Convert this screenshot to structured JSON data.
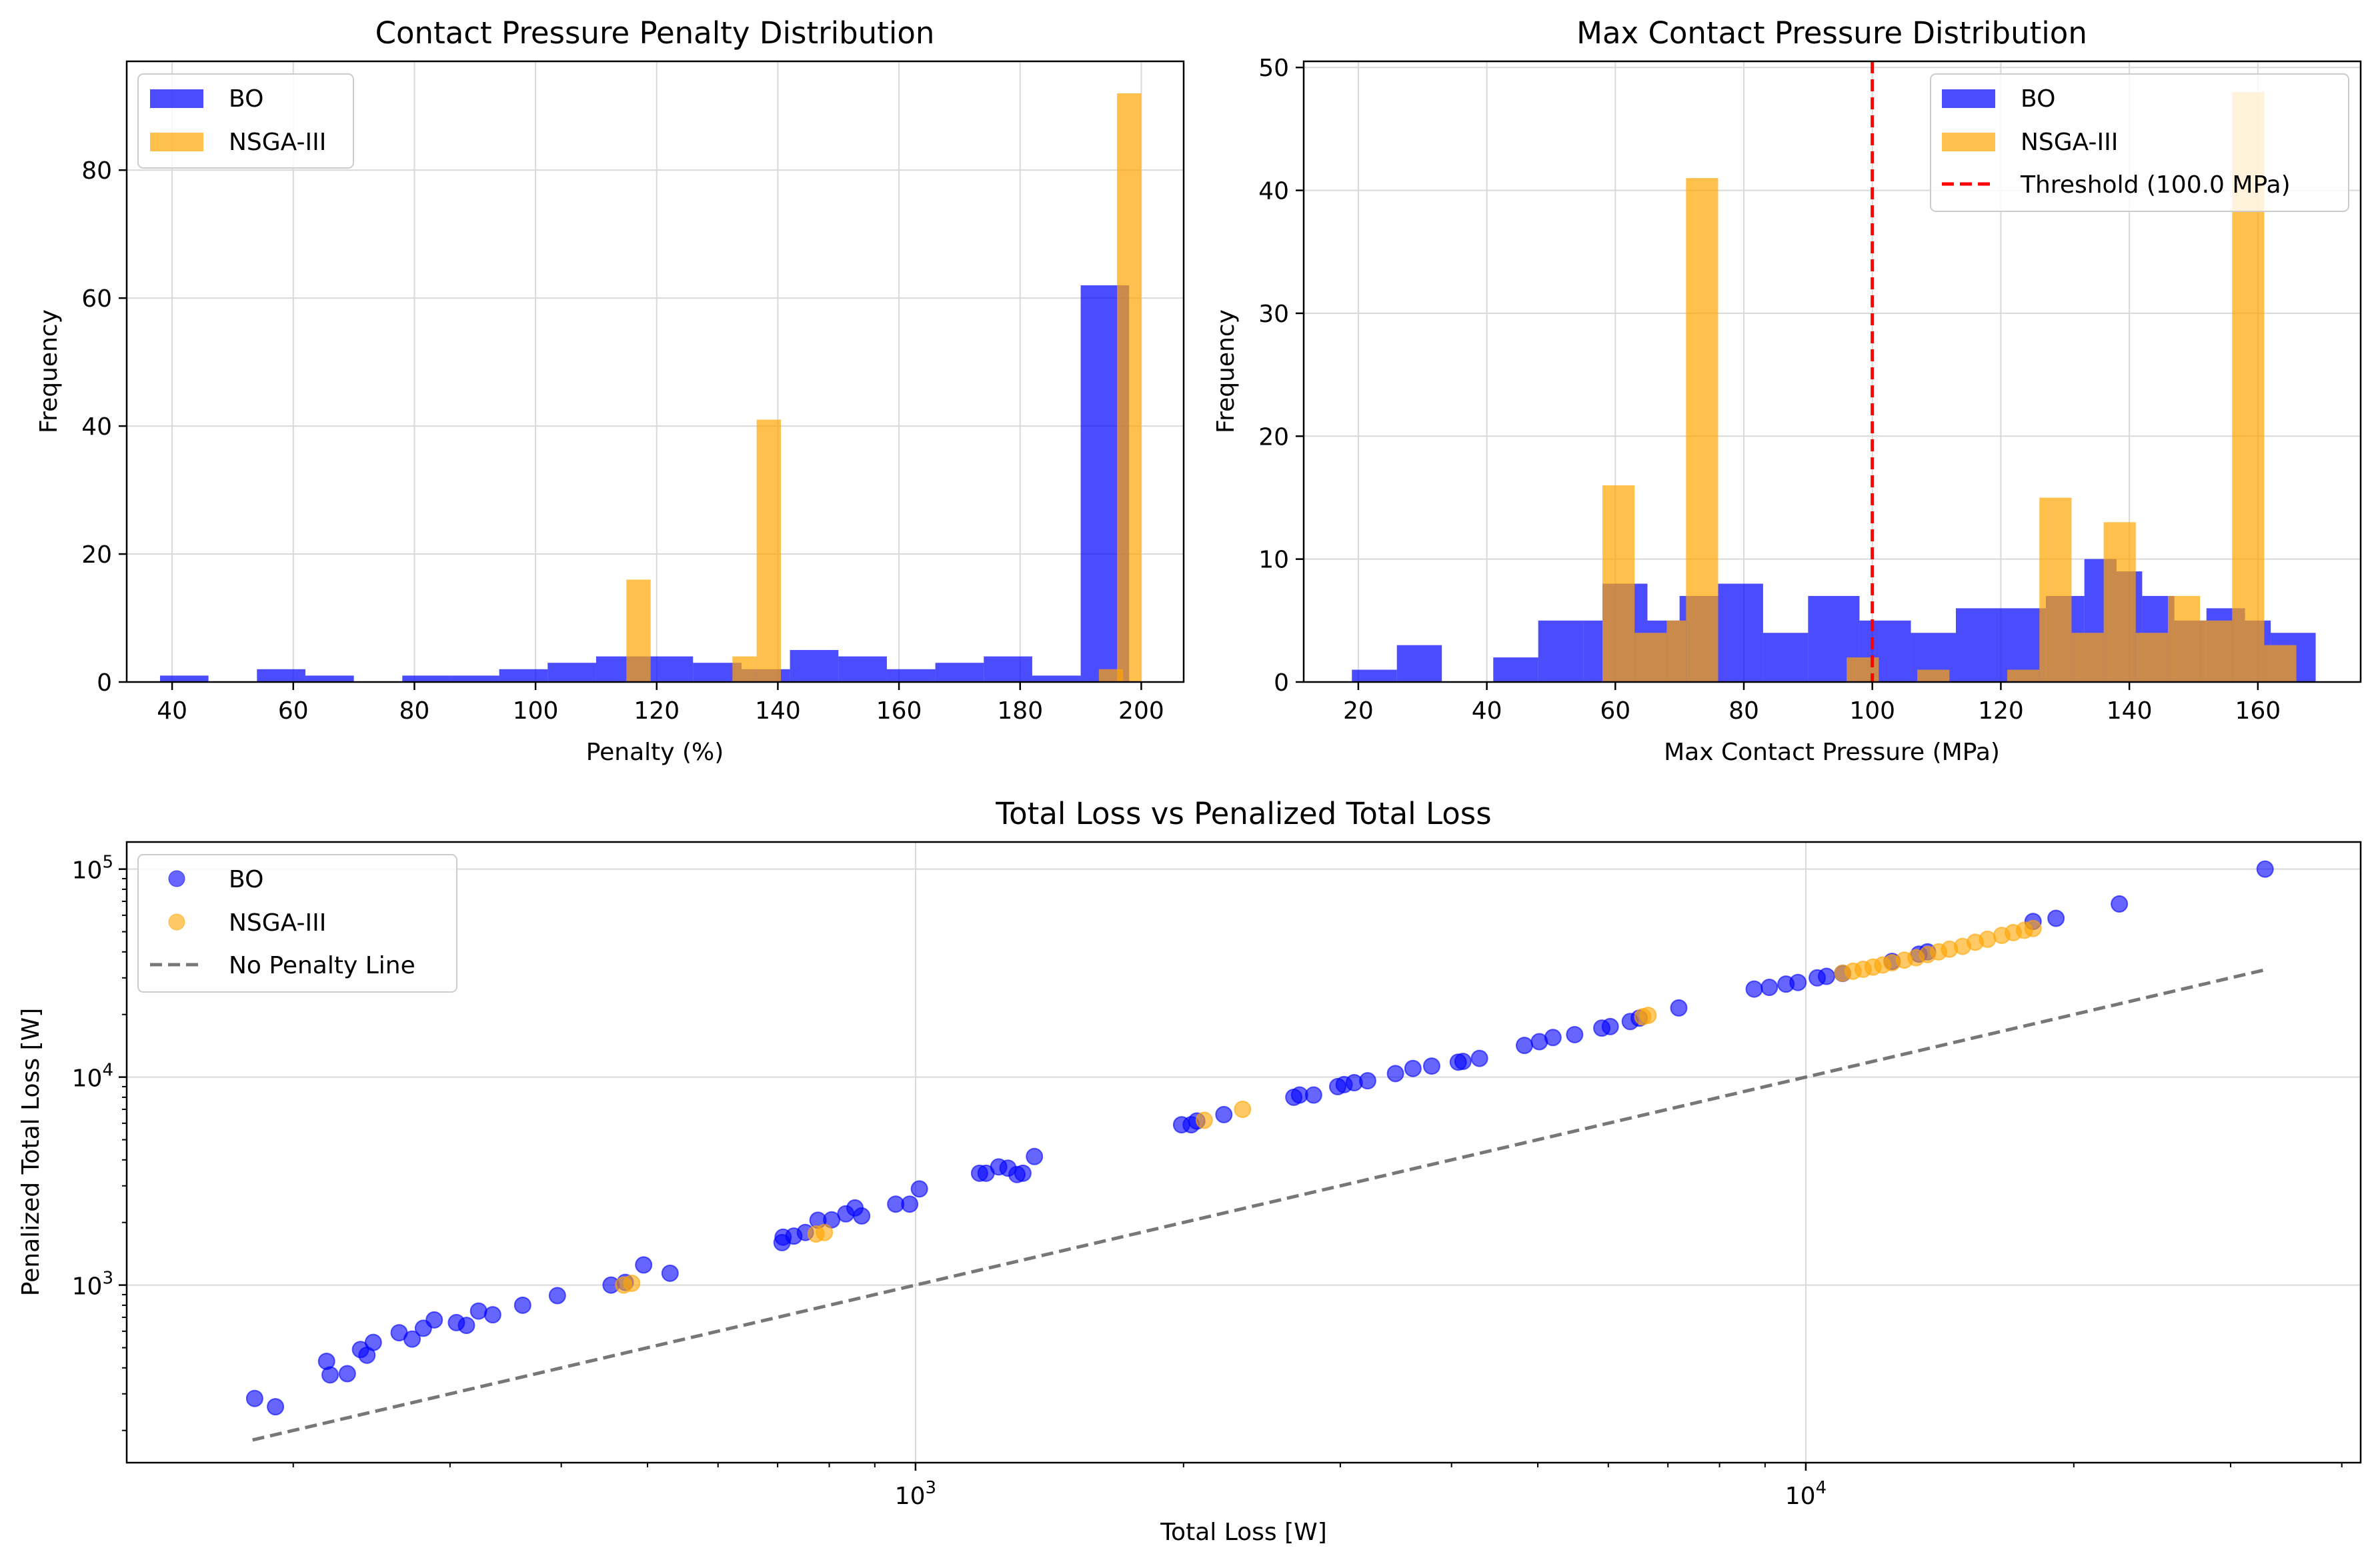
{
  "colors": {
    "bo": "#0000ff",
    "nsga": "#ffa500",
    "threshold": "#ff0000",
    "noPenalty": "#555555",
    "grid": "#d9d9d9"
  },
  "chart_data": [
    {
      "type": "bar",
      "title": "Contact Pressure Penalty Distribution",
      "xlabel": "Penalty (%)",
      "ylabel": "Frequency",
      "xlim": [
        32.5,
        207
      ],
      "ylim": [
        0,
        97
      ],
      "xticks": [
        40,
        60,
        80,
        100,
        120,
        140,
        160,
        180,
        200
      ],
      "yticks": [
        0,
        20,
        40,
        60,
        80
      ],
      "grid": true,
      "legend_position": "upper-left",
      "legend": [
        "BO",
        "NSGA-III"
      ],
      "series": [
        {
          "name": "BO",
          "color": "#0000ff",
          "alpha": 0.7,
          "bins": [
            [
              38,
              46,
              1
            ],
            [
              54,
              62,
              2
            ],
            [
              62,
              70,
              1
            ],
            [
              78,
              86,
              1
            ],
            [
              86,
              94,
              1
            ],
            [
              94,
              102,
              2
            ],
            [
              102,
              110,
              3
            ],
            [
              110,
              118,
              4
            ],
            [
              118,
              126,
              4
            ],
            [
              126,
              134,
              3
            ],
            [
              134,
              142,
              2
            ],
            [
              142,
              150,
              5
            ],
            [
              150,
              158,
              4
            ],
            [
              158,
              166,
              2
            ],
            [
              166,
              174,
              3
            ],
            [
              174,
              182,
              4
            ],
            [
              182,
              190,
              1
            ],
            [
              190,
              198,
              62
            ]
          ]
        },
        {
          "name": "NSGA-III",
          "color": "#ffa500",
          "alpha": 0.7,
          "bins": [
            [
              115,
              119,
              16
            ],
            [
              132.5,
              136.5,
              4
            ],
            [
              136.5,
              140.5,
              41
            ],
            [
              193,
              197,
              2
            ],
            [
              196,
              200,
              92
            ]
          ]
        }
      ]
    },
    {
      "type": "bar",
      "title": "Max Contact Pressure Distribution",
      "xlabel": "Max Contact Pressure (MPa)",
      "ylabel": "Frequency",
      "xlim": [
        11.5,
        176
      ],
      "ylim": [
        0,
        50.5
      ],
      "xticks": [
        20,
        40,
        60,
        80,
        100,
        120,
        140,
        160
      ],
      "yticks": [
        0,
        10,
        20,
        30,
        40,
        50
      ],
      "grid": true,
      "legend_position": "upper-right",
      "legend": [
        "BO",
        "NSGA-III",
        "Threshold (100.0 MPa)"
      ],
      "threshold": 100,
      "series": [
        {
          "name": "BO",
          "color": "#0000ff",
          "alpha": 0.7,
          "bins": [
            [
              19,
              26,
              1
            ],
            [
              26,
              33,
              3
            ],
            [
              41,
              48,
              2
            ],
            [
              48,
              55,
              5
            ],
            [
              55,
              58,
              5
            ],
            [
              58,
              65,
              8
            ],
            [
              65,
              70,
              5
            ],
            [
              70,
              76,
              7
            ],
            [
              76,
              83,
              8
            ],
            [
              83,
              90,
              4
            ],
            [
              90,
              98,
              7
            ],
            [
              98,
              106,
              5
            ],
            [
              106,
              113,
              4
            ],
            [
              113,
              120,
              6
            ],
            [
              120,
              127,
              6
            ],
            [
              127,
              133,
              7
            ],
            [
              133,
              138,
              10
            ],
            [
              138,
              142,
              9
            ],
            [
              142,
              147,
              7
            ],
            [
              147,
              152,
              5
            ],
            [
              152,
              158,
              6
            ],
            [
              158,
              162,
              5
            ],
            [
              162,
              169,
              4
            ]
          ]
        },
        {
          "name": "NSGA-III",
          "color": "#ffa500",
          "alpha": 0.7,
          "bins": [
            [
              58,
              63,
              16
            ],
            [
              63,
              68,
              4
            ],
            [
              68,
              71,
              5
            ],
            [
              71,
              76,
              41
            ],
            [
              96,
              101,
              2
            ],
            [
              107,
              112,
              1
            ],
            [
              121,
              126,
              1
            ],
            [
              126,
              131,
              15
            ],
            [
              131,
              136,
              4
            ],
            [
              136,
              141,
              13
            ],
            [
              141,
              146,
              4
            ],
            [
              146,
              151,
              7
            ],
            [
              151,
              156,
              5
            ],
            [
              156,
              161,
              48
            ],
            [
              161,
              166,
              3
            ]
          ]
        }
      ]
    },
    {
      "type": "scatter",
      "title": "Total Loss vs Penalized Total Loss",
      "xlabel": "Total Loss [W]",
      "ylabel": "Penalized Total Loss [W]",
      "xscale": "log",
      "yscale": "log",
      "xlim": [
        130,
        42000
      ],
      "ylim": [
        140,
        135000
      ],
      "xticks": [
        1000,
        10000
      ],
      "xtick_labels": [
        "10^3",
        "10^4"
      ],
      "yticks": [
        1000,
        10000,
        100000
      ],
      "ytick_labels": [
        "10^3",
        "10^4",
        "10^5"
      ],
      "grid": true,
      "legend_position": "upper-left",
      "legend": [
        "BO",
        "NSGA-III",
        "No Penalty Line"
      ],
      "no_penalty_line": {
        "x": [
          180,
          33000
        ],
        "y": [
          180,
          33000
        ]
      },
      "series": [
        {
          "name": "BO",
          "color": "#0000ff",
          "alpha": 0.6,
          "points": [
            [
              181,
              285
            ],
            [
              191,
              260
            ],
            [
              218,
              430
            ],
            [
              220,
              370
            ],
            [
              230,
              375
            ],
            [
              238,
              490
            ],
            [
              242,
              460
            ],
            [
              246,
              530
            ],
            [
              263,
              590
            ],
            [
              272,
              550
            ],
            [
              280,
              620
            ],
            [
              288,
              680
            ],
            [
              305,
              660
            ],
            [
              313,
              640
            ],
            [
              323,
              750
            ],
            [
              335,
              720
            ],
            [
              362,
              800
            ],
            [
              396,
              890
            ],
            [
              455,
              1000
            ],
            [
              472,
              1030
            ],
            [
              495,
              1250
            ],
            [
              530,
              1140
            ],
            [
              708,
              1600
            ],
            [
              710,
              1700
            ],
            [
              730,
              1720
            ],
            [
              752,
              1790
            ],
            [
              777,
              2050
            ],
            [
              805,
              2060
            ],
            [
              835,
              2200
            ],
            [
              855,
              2350
            ],
            [
              870,
              2150
            ],
            [
              950,
              2450
            ],
            [
              985,
              2450
            ],
            [
              1010,
              2900
            ],
            [
              1180,
              3450
            ],
            [
              1200,
              3450
            ],
            [
              1240,
              3700
            ],
            [
              1270,
              3650
            ],
            [
              1300,
              3400
            ],
            [
              1320,
              3450
            ],
            [
              1360,
              4150
            ],
            [
              1990,
              5900
            ],
            [
              2040,
              5900
            ],
            [
              2070,
              6150
            ],
            [
              2220,
              6600
            ],
            [
              2660,
              8000
            ],
            [
              2700,
              8200
            ],
            [
              2800,
              8200
            ],
            [
              2980,
              9000
            ],
            [
              3030,
              9200
            ],
            [
              3110,
              9400
            ],
            [
              3220,
              9600
            ],
            [
              3460,
              10400
            ],
            [
              3620,
              11000
            ],
            [
              3800,
              11300
            ],
            [
              4070,
              11800
            ],
            [
              4120,
              11900
            ],
            [
              4300,
              12300
            ],
            [
              4830,
              14200
            ],
            [
              5020,
              14800
            ],
            [
              5200,
              15500
            ],
            [
              5500,
              16000
            ],
            [
              5900,
              17200
            ],
            [
              6030,
              17500
            ],
            [
              6350,
              18500
            ],
            [
              6500,
              19200
            ],
            [
              7200,
              21500
            ],
            [
              8750,
              26500
            ],
            [
              9100,
              27000
            ],
            [
              9500,
              28000
            ],
            [
              9800,
              28500
            ],
            [
              10300,
              30000
            ],
            [
              10550,
              30500
            ],
            [
              11000,
              31500
            ],
            [
              12500,
              36000
            ],
            [
              13400,
              39000
            ],
            [
              13700,
              40000
            ],
            [
              18000,
              56000
            ],
            [
              19100,
              58000
            ],
            [
              22500,
              68000
            ],
            [
              32800,
              100000
            ]
          ]
        },
        {
          "name": "NSGA-III",
          "color": "#ffa500",
          "alpha": 0.6,
          "points": [
            [
              470,
              1000
            ],
            [
              480,
              1020
            ],
            [
              773,
              1760
            ],
            [
              790,
              1790
            ],
            [
              2110,
              6200
            ],
            [
              2330,
              7000
            ],
            [
              6560,
              19500
            ],
            [
              6650,
              19800
            ],
            [
              11000,
              31600
            ],
            [
              11300,
              32300
            ],
            [
              11600,
              33000
            ],
            [
              11900,
              33800
            ],
            [
              12200,
              34600
            ],
            [
              12500,
              35500
            ],
            [
              12900,
              36500
            ],
            [
              13300,
              37500
            ],
            [
              13700,
              38800
            ],
            [
              14100,
              40000
            ],
            [
              14500,
              41200
            ],
            [
              15000,
              42500
            ],
            [
              15500,
              44500
            ],
            [
              16000,
              46000
            ],
            [
              16600,
              48000
            ],
            [
              17100,
              49500
            ],
            [
              17600,
              50800
            ],
            [
              18000,
              51800
            ]
          ]
        }
      ]
    }
  ]
}
